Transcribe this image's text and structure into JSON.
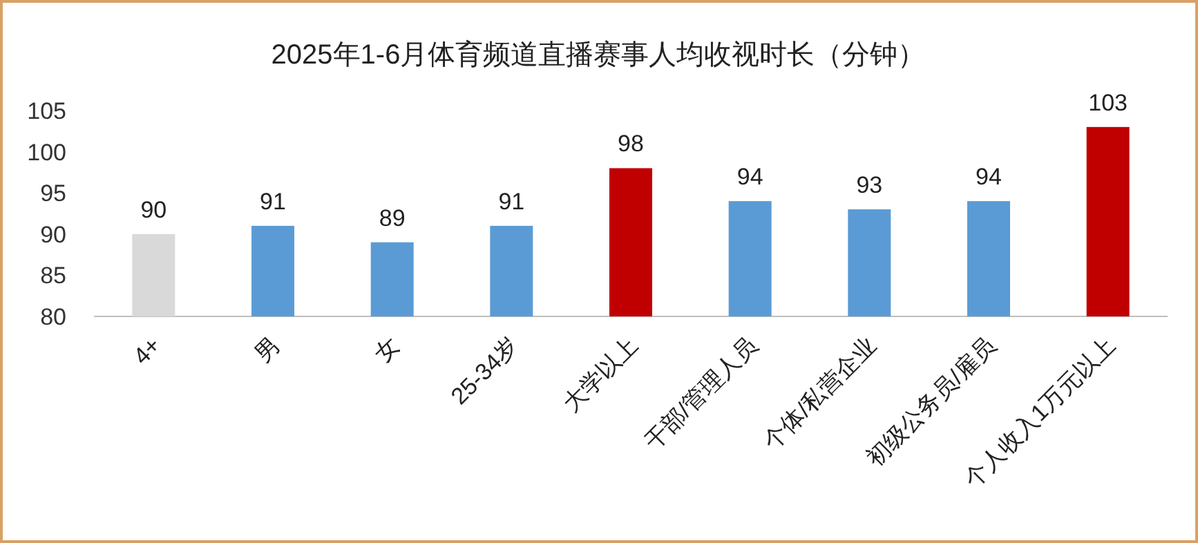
{
  "chart_data": {
    "type": "bar",
    "title": "2025年1-6月体育频道直播赛事人均收视时长（分钟）",
    "categories": [
      "4+",
      "男",
      "女",
      "25-34岁",
      "大学以上",
      "干部/管理人员",
      "个体/私营企业",
      "初级公务员/雇员",
      "个人收入1万元以上"
    ],
    "values": [
      90,
      91,
      89,
      91,
      98,
      94,
      93,
      94,
      103
    ],
    "colors": [
      "#d9d9d9",
      "#5b9bd5",
      "#5b9bd5",
      "#5b9bd5",
      "#c00000",
      "#5b9bd5",
      "#5b9bd5",
      "#5b9bd5",
      "#c00000"
    ],
    "ylim": [
      80,
      105
    ],
    "yticks": [
      80,
      85,
      90,
      95,
      100,
      105
    ],
    "data_labels": true,
    "grid": false
  }
}
